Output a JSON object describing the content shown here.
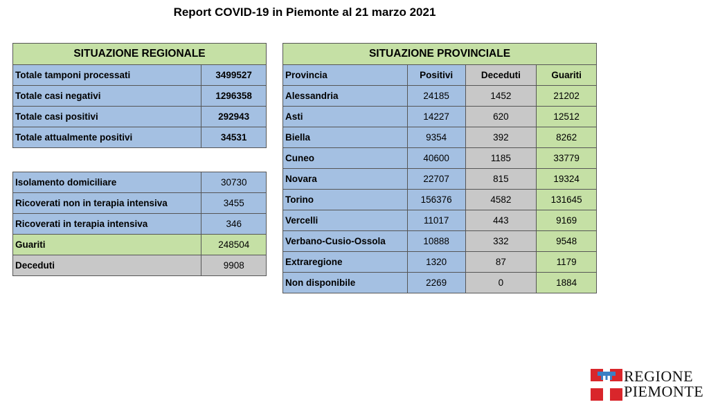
{
  "title": "Report COVID-19 in Piemonte al 21 marzo 2021",
  "regional": {
    "header": "SITUAZIONE REGIONALE",
    "rows": [
      {
        "label": "Totale tamponi processati",
        "value": "3499527"
      },
      {
        "label": "Totale casi negativi",
        "value": "1296358"
      },
      {
        "label": "Totale casi positivi",
        "value": "292943"
      },
      {
        "label": "Totale attualmente positivi",
        "value": "34531"
      }
    ]
  },
  "breakdown": {
    "rows": [
      {
        "label": "Isolamento domiciliare",
        "value": "30730"
      },
      {
        "label": "Ricoverati non in terapia intensiva",
        "value": "3455"
      },
      {
        "label": "Ricoverati in terapia intensiva",
        "value": "346"
      },
      {
        "label": "Guariti",
        "value": "248504"
      },
      {
        "label": "Deceduti",
        "value": "9908"
      }
    ]
  },
  "provincial": {
    "header": "SITUAZIONE PROVINCIALE",
    "columns": [
      "Provincia",
      "Positivi",
      "Deceduti",
      "Guariti"
    ],
    "rows": [
      {
        "name": "Alessandria",
        "positivi": "24185",
        "deceduti": "1452",
        "guariti": "21202"
      },
      {
        "name": "Asti",
        "positivi": "14227",
        "deceduti": "620",
        "guariti": "12512"
      },
      {
        "name": "Biella",
        "positivi": "9354",
        "deceduti": "392",
        "guariti": "8262"
      },
      {
        "name": "Cuneo",
        "positivi": "40600",
        "deceduti": "1185",
        "guariti": "33779"
      },
      {
        "name": "Novara",
        "positivi": "22707",
        "deceduti": "815",
        "guariti": "19324"
      },
      {
        "name": "Torino",
        "positivi": "156376",
        "deceduti": "4582",
        "guariti": "131645"
      },
      {
        "name": "Vercelli",
        "positivi": "11017",
        "deceduti": "443",
        "guariti": "9169"
      },
      {
        "name": "Verbano-Cusio-Ossola",
        "positivi": "10888",
        "deceduti": "332",
        "guariti": "9548"
      },
      {
        "name": "Extraregione",
        "positivi": "1320",
        "deceduti": "87",
        "guariti": "1179"
      },
      {
        "name": "Non disponibile",
        "positivi": "2269",
        "deceduti": "0",
        "guariti": "1884"
      }
    ]
  },
  "logo": {
    "line1": "REGIONE",
    "line2": "PIEMONTE",
    "icon": "regione-piemonte-emblem"
  },
  "colors": {
    "header_green": "#c5e0a5",
    "cell_blue": "#a4c0e2",
    "cell_gray": "#c8c8c8",
    "logo_red": "#d9262b"
  }
}
